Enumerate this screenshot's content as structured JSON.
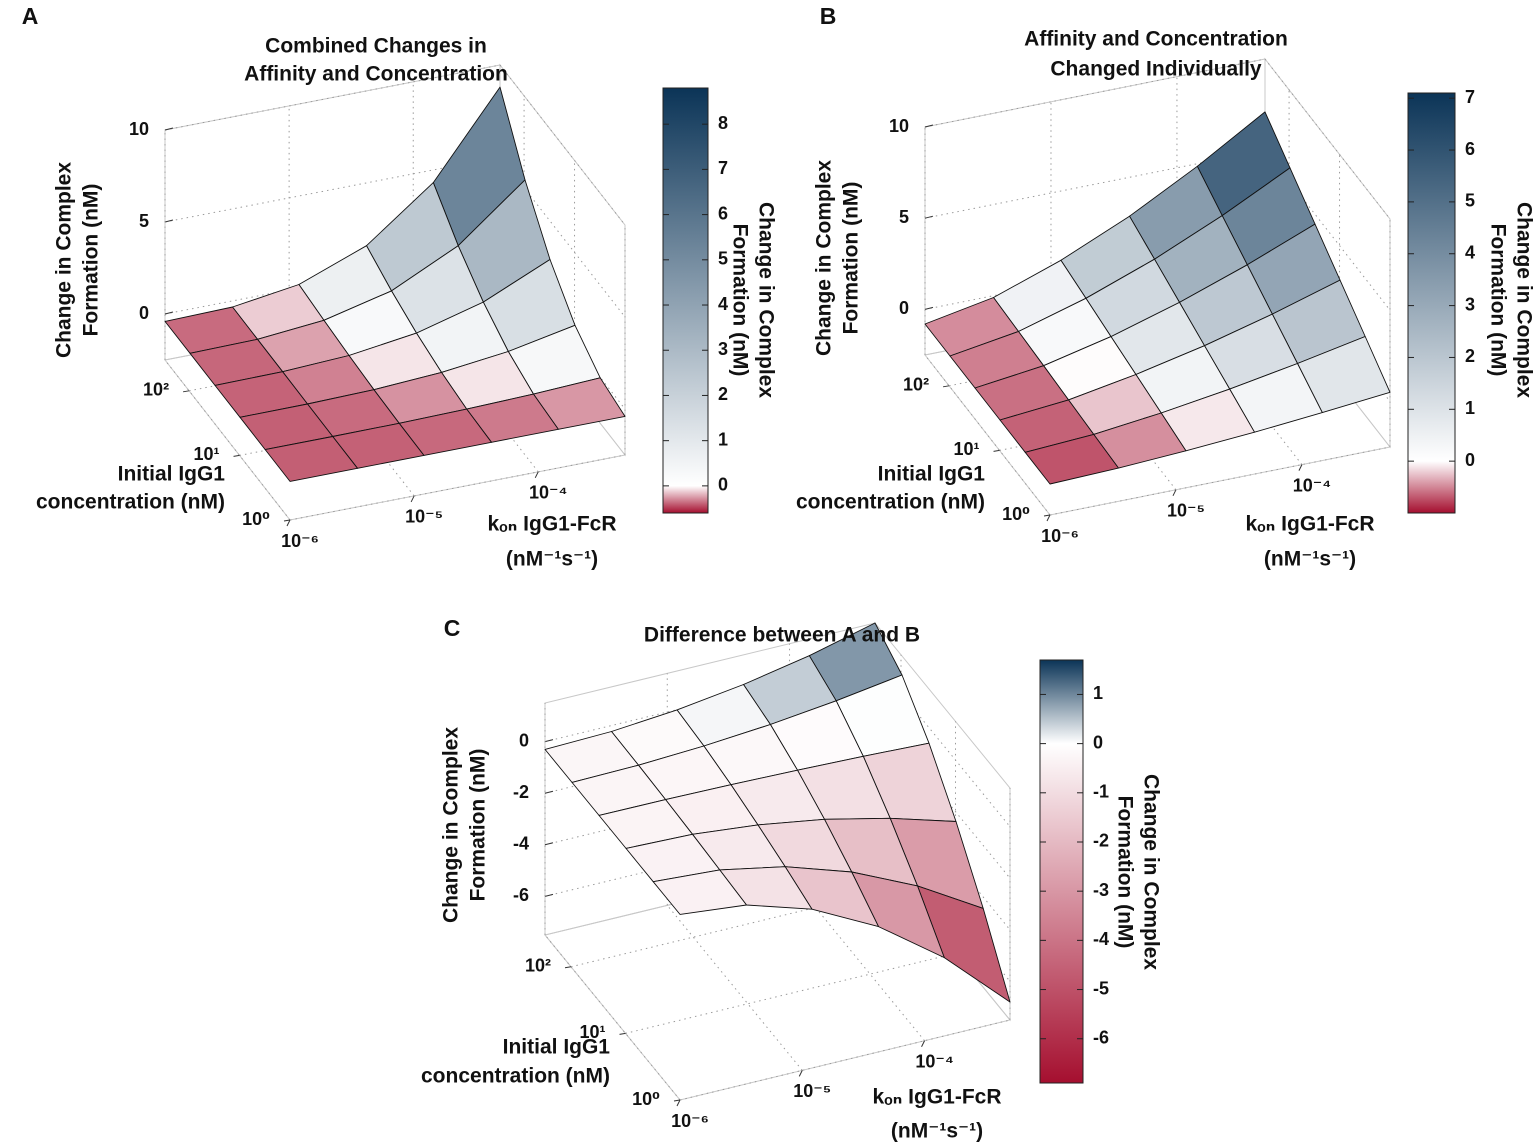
{
  "chart_data": [
    {
      "type": "surface",
      "panel": "A",
      "title": [
        "Combined Changes in",
        "Affinity and Concentration"
      ],
      "xlabel": [
        "kₒₙ IgG1-FcR",
        "(nM⁻¹s⁻¹)"
      ],
      "ylabel": [
        "Initial IgG1",
        "concentration (nM)"
      ],
      "zlabel": [
        "Change in Complex",
        "Formation (nM)"
      ],
      "colorbar_label": [
        "Change in Complex",
        "Formation (nM)"
      ],
      "xscale": "log",
      "yscale": "log",
      "grid": true,
      "xlim": [
        1e-06,
        0.0005
      ],
      "xticks": [
        {
          "value": 1e-06,
          "label": "10⁻⁶"
        },
        {
          "value": 1e-05,
          "label": "10⁻⁵"
        },
        {
          "value": 0.0001,
          "label": "10⁻⁴"
        }
      ],
      "ylim": [
        1,
        300
      ],
      "yticks": [
        {
          "value": 1,
          "label": "10⁰"
        },
        {
          "value": 10,
          "label": "10¹"
        },
        {
          "value": 100,
          "label": "10²"
        }
      ],
      "zlim": [
        -2.5,
        10
      ],
      "zticks": [
        0,
        5,
        10
      ],
      "clim": [
        -0.6,
        8.8
      ],
      "cticks": [
        0,
        1,
        2,
        3,
        4,
        5,
        6,
        7,
        8
      ],
      "colormap": [
        "#a50f2f",
        "#ffffff",
        "#0b3457"
      ],
      "x": [
        1e-06,
        3.5e-06,
        1.2e-05,
        4.2e-05,
        0.000145,
        0.0005
      ],
      "y": [
        1,
        3.1,
        9.8,
        30.6,
        96,
        300
      ],
      "z": [
        [
          -0.4,
          -0.4,
          -0.4,
          -0.4,
          -0.4,
          -0.4
        ],
        [
          -0.4,
          -0.4,
          -0.38,
          -0.32,
          -0.21,
          -0.03
        ],
        [
          -0.4,
          -0.39,
          -0.31,
          -0.08,
          0.35,
          1.07
        ],
        [
          -0.4,
          -0.37,
          -0.19,
          0.32,
          1.3,
          2.91
        ],
        [
          -0.4,
          -0.35,
          -0.02,
          0.87,
          2.62,
          5.49
        ],
        [
          -0.4,
          -0.33,
          0.19,
          1.59,
          4.31,
          8.8
        ]
      ]
    },
    {
      "type": "surface",
      "panel": "B",
      "title": [
        "Affinity and Concentration",
        "Changed Individually"
      ],
      "xlabel": [
        "kₒₙ IgG1-FcR",
        "(nM⁻¹s⁻¹)"
      ],
      "ylabel": [
        "Initial IgG1",
        "concentration (nM)"
      ],
      "zlabel": [
        "Change in Complex",
        "Formation (nM)"
      ],
      "colorbar_label": [
        "Change in Complex",
        "Formation (nM)"
      ],
      "xscale": "log",
      "yscale": "log",
      "grid": true,
      "xlim": [
        1e-06,
        0.0005
      ],
      "xticks": [
        {
          "value": 1e-06,
          "label": "10⁻⁶"
        },
        {
          "value": 1e-05,
          "label": "10⁻⁵"
        },
        {
          "value": 0.0001,
          "label": "10⁻⁴"
        }
      ],
      "ylim": [
        1,
        300
      ],
      "yticks": [
        {
          "value": 1,
          "label": "10⁰"
        },
        {
          "value": 10,
          "label": "10¹"
        },
        {
          "value": 100,
          "label": "10²"
        }
      ],
      "zlim": [
        -2.5,
        10
      ],
      "zticks": [
        0,
        5,
        10
      ],
      "clim": [
        -1,
        7.1
      ],
      "cticks": [
        0,
        1,
        2,
        3,
        4,
        5,
        6,
        7
      ],
      "colormap": [
        "#a50f2f",
        "#ffffff",
        "#0b3457"
      ],
      "x": [
        1e-06,
        3.5e-06,
        1.2e-05,
        4.2e-05,
        0.000145,
        0.0005
      ],
      "y": [
        1,
        3.1,
        9.8,
        30.6,
        96,
        300
      ],
      "z": [
        [
          -0.8,
          -0.68,
          -0.47,
          -0.2,
          0.13,
          0.5
        ],
        [
          -0.8,
          -0.57,
          -0.14,
          0.42,
          1.08,
          1.82
        ],
        [
          -0.8,
          -0.45,
          0.2,
          1.03,
          2.02,
          3.14
        ],
        [
          -0.8,
          -0.33,
          0.53,
          1.65,
          2.97,
          4.46
        ],
        [
          -0.8,
          -0.21,
          0.87,
          2.26,
          3.91,
          5.78
        ],
        [
          -0.8,
          -0.1,
          1.2,
          2.87,
          4.86,
          7.1
        ]
      ]
    },
    {
      "type": "surface",
      "panel": "C",
      "title": [
        "Difference between A and B"
      ],
      "xlabel": [
        "kₒₙ IgG1-FcR",
        "(nM⁻¹s⁻¹)"
      ],
      "ylabel": [
        "Initial IgG1",
        "concentration (nM)"
      ],
      "zlabel": [
        "Change in Complex",
        "Formation (nM)"
      ],
      "colorbar_label": [
        "Change in Complex",
        "Formation (nM)"
      ],
      "xscale": "log",
      "yscale": "log",
      "grid": true,
      "xlim": [
        1e-06,
        0.0005
      ],
      "xticks": [
        {
          "value": 1e-06,
          "label": "10⁻⁶"
        },
        {
          "value": 1e-05,
          "label": "10⁻⁵"
        },
        {
          "value": 0.0001,
          "label": "10⁻⁴"
        }
      ],
      "ylim": [
        1,
        300
      ],
      "yticks": [
        {
          "value": 1,
          "label": "10⁰"
        },
        {
          "value": 10,
          "label": "10¹"
        },
        {
          "value": 100,
          "label": "10²"
        }
      ],
      "zlim": [
        -7.5,
        1.5
      ],
      "zticks": [
        -6,
        -4,
        -2,
        0
      ],
      "clim": [
        -6.9,
        1.7
      ],
      "cticks": [
        -6,
        -5,
        -4,
        -3,
        -2,
        -1,
        0,
        1
      ],
      "colormap": [
        "#a50f2f",
        "#ffffff",
        "#0b3457"
      ],
      "x": [
        1e-06,
        3.5e-06,
        1.2e-05,
        4.2e-05,
        0.000145,
        0.0005
      ],
      "y": [
        1,
        3.1,
        9.8,
        30.6,
        96,
        300
      ],
      "z": [
        [
          -0.3,
          -0.56,
          -1.34,
          -2.64,
          -4.46,
          -6.8
        ],
        [
          -0.3,
          -0.47,
          -0.96,
          -1.79,
          -2.95,
          -4.44
        ],
        [
          -0.3,
          -0.38,
          -0.63,
          -1.04,
          -1.62,
          -2.36
        ],
        [
          -0.3,
          -0.31,
          -0.35,
          -0.41,
          -0.49,
          -0.6
        ],
        [
          -0.3,
          -0.26,
          -0.13,
          0.08,
          0.38,
          0.76
        ],
        [
          -0.3,
          -0.23,
          -0.01,
          0.35,
          0.85,
          1.5
        ]
      ]
    }
  ]
}
